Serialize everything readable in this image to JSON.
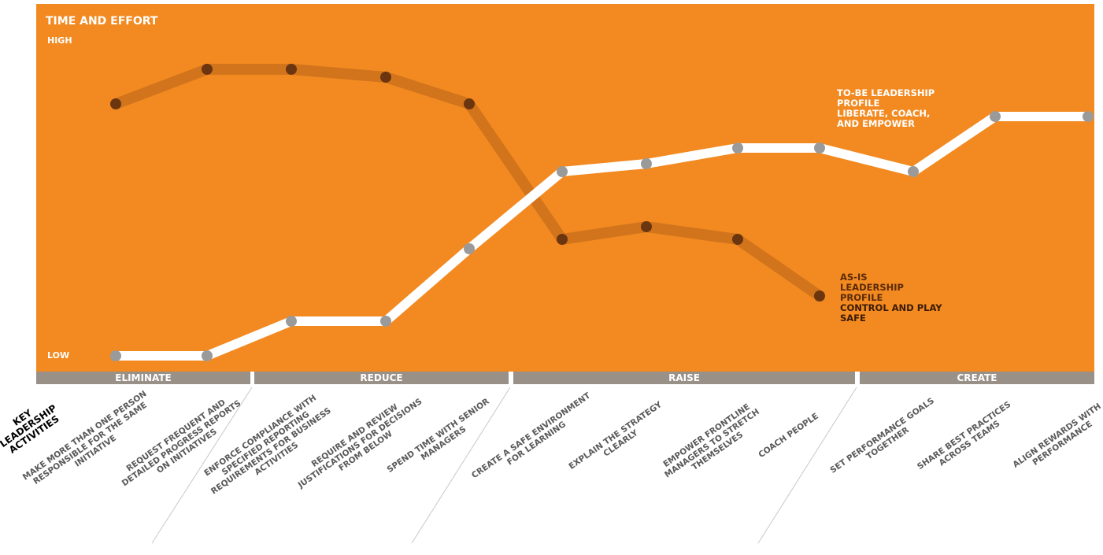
{
  "chart_data": {
    "type": "line",
    "title": "TIME AND EFFORT",
    "x_label": "KEY LEADERSHIP ACTIVITIES",
    "categories": [
      "MAKE MORE THAN ONE PERSON RESPONSIBLE FOR THE SAME INITIATIVE",
      "REQUEST FREQUENT AND DETAILED PROGRESS REPORTS ON INITIATIVES",
      "ENFORCE COMPLIANCE WITH SPECIFIED REPORTING REQUIREMENTS FOR BUSINESS ACTIVITIES",
      "REQUIRE AND REVIEW JUSTIFICATIONS FOR DECISIONS FROM BELOW",
      "SPEND TIME WITH SENIOR MANAGERS",
      "CREATE A SAFE ENVIRONMENT FOR LEARNING",
      "EXPLAIN THE STRATEGY CLEARLY",
      "EMPOWER FRONTLINE MANAGERS TO STRETCH THEMSELVES",
      "COACH PEOPLE",
      "SET PERFORMANCE GOALS TOGETHER",
      "SHARE BEST PRACTICES ACROSS TEAMS",
      "ALIGN REWARDS WITH PERFORMANCE"
    ],
    "groups": [
      "ELIMINATE",
      "REDUCE",
      "RAISE",
      "CREATE"
    ],
    "series": [
      {
        "name": "AS-IS LEADERSHIP PROFILE",
        "description": "CONTROL AND PLAY SAFE",
        "color": "#b8621a",
        "values": [
          8,
          9.1,
          9.1,
          8.85,
          8,
          3.7,
          4.1,
          3.7,
          1.9,
          null,
          null,
          null
        ]
      },
      {
        "name": "TO-BE LEADERSHIP PROFILE",
        "description": "LIBERATE, COACH, AND EMPOWER",
        "color": "#ffffff",
        "values": [
          0,
          0,
          1.1,
          1.1,
          3.4,
          5.85,
          6.1,
          6.6,
          6.6,
          5.85,
          7.6,
          7.6
        ]
      }
    ],
    "ylim": [
      0,
      10
    ],
    "yticks": [
      {
        "value": 0,
        "label": "LOW"
      },
      {
        "value": 10,
        "label": "HIGH"
      }
    ]
  }
}
